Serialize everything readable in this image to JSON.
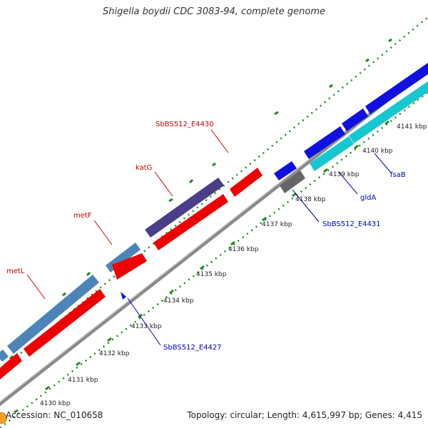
{
  "title": "Shigella boydii CDC 3083-94, complete genome",
  "footer": {
    "accession": "Accession: NC_010658",
    "summary": "Topology: circular; Length: 4,615,997 bp; Genes: 4,415"
  },
  "colors": {
    "forward_feature": "#ee0000",
    "gene_steelblue": "#4d84b8",
    "gene_purple": "#4b3d8a",
    "gene_blue": "#1010e0",
    "gene_cyan": "#17c7cf",
    "gene_gray": "#666666",
    "backbone": "#8a8a8a",
    "tick": "#1f8a1f",
    "label_red": "#cc0000",
    "label_blue": "#0000cc"
  },
  "scale_labels": [
    "4130 kbp",
    "4131 kbp",
    "4132 kbp",
    "4133 kbp",
    "4134 kbp",
    "4135 kbp",
    "4136 kbp",
    "4137 kbp",
    "4138 kbp",
    "4139 kbp",
    "4140 kbp",
    "4141 kbp"
  ],
  "gene_labels": [
    {
      "text": "metL",
      "color": "red"
    },
    {
      "text": "metF",
      "color": "red"
    },
    {
      "text": "katG",
      "color": "red"
    },
    {
      "text": "SbBS512_E4430",
      "color": "red"
    },
    {
      "text": "SbBS512_E4427",
      "color": "blue"
    },
    {
      "text": "SbBS512_E4431",
      "color": "blue"
    },
    {
      "text": "gldA",
      "color": "blue"
    },
    {
      "text": "fsaB",
      "color": "blue"
    }
  ]
}
